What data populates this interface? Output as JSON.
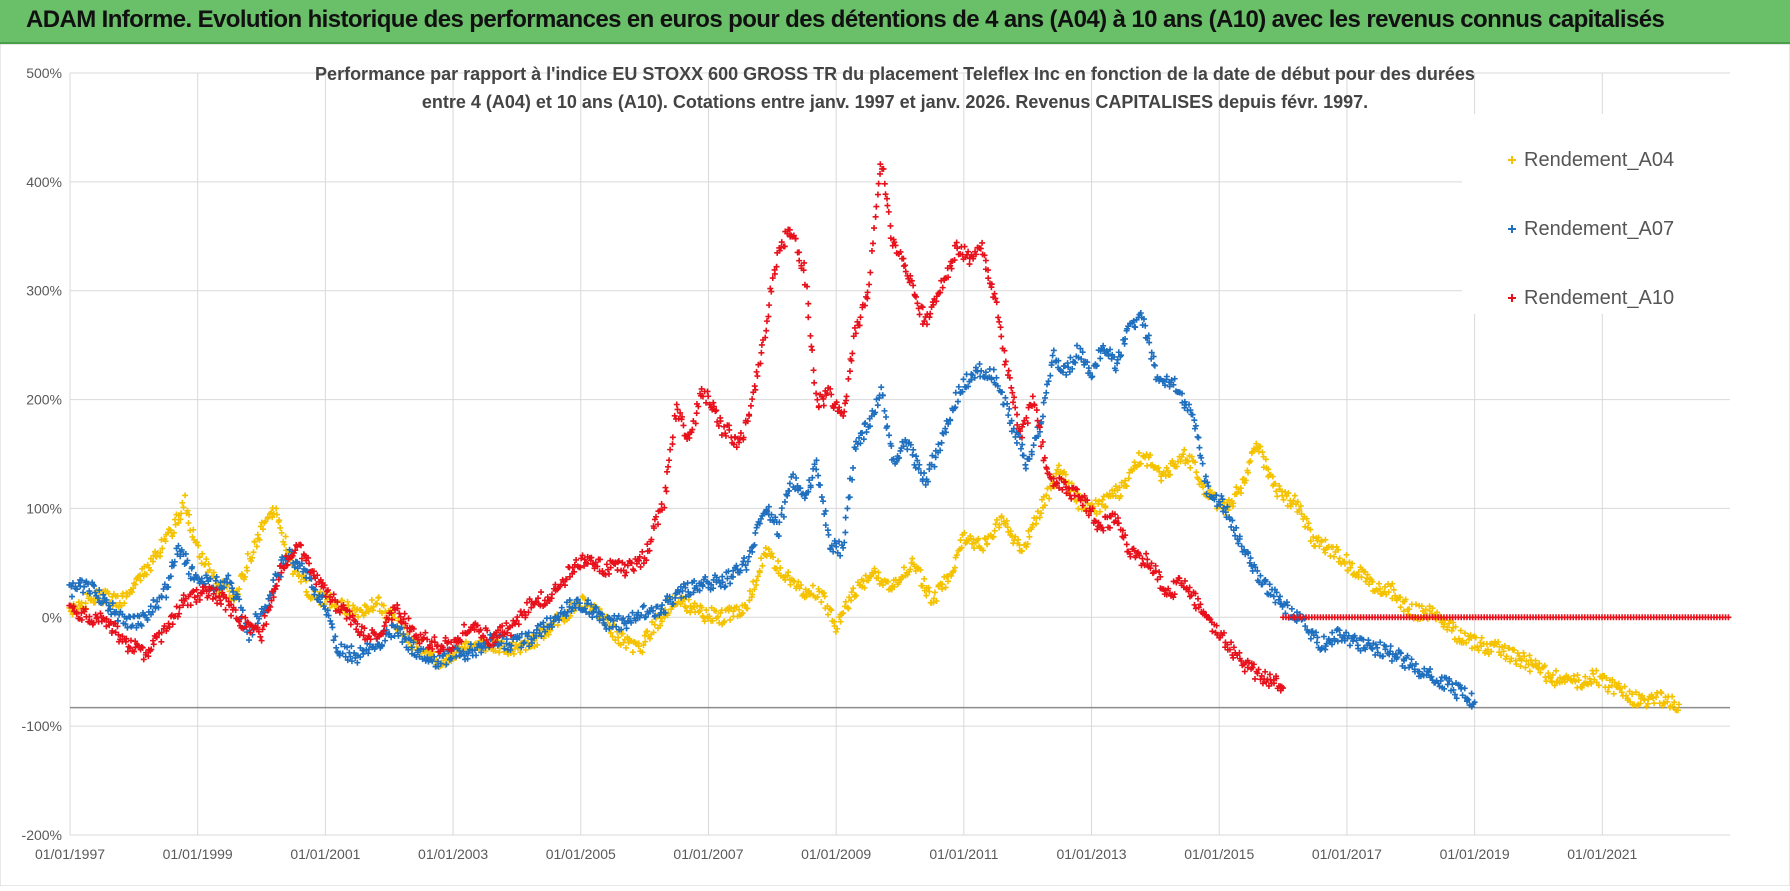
{
  "banner": {
    "title": "ADAM Informe. Evolution historique des performances en euros pour des détentions de 4 ans (A04) à 10 ans (A10) avec les revenus connus capitalisés"
  },
  "colors": {
    "banner_bg": "#6abf69",
    "a04": "#f5c200",
    "a07": "#1f6fbf",
    "a10": "#e8111b",
    "grid": "#d9d9d9",
    "axis_text": "#595959"
  },
  "chart_data": {
    "type": "scatter",
    "title_line1": "Performance par rapport à l'indice EU STOXX 600 GROSS TR  du placement Teleflex Inc en fonction de la date de début pour des durées",
    "title_line2": "entre 4 (A04) et 10 ans (A10).  Cotations entre janv. 1997 et janv. 2026. Revenus CAPITALISES depuis févr. 1997.",
    "xlabel": "",
    "ylabel": "",
    "x_range": [
      1997.0,
      2023.0
    ],
    "ylim": [
      -200,
      500
    ],
    "y_ticks": [
      {
        "v": 500,
        "label": "500%"
      },
      {
        "v": 400,
        "label": "400%"
      },
      {
        "v": 300,
        "label": "300%"
      },
      {
        "v": 200,
        "label": "200%"
      },
      {
        "v": 100,
        "label": "100%"
      },
      {
        "v": 0,
        "label": "0%"
      },
      {
        "v": -100,
        "label": "-100%"
      },
      {
        "v": -200,
        "label": "-200%"
      }
    ],
    "x_ticks": [
      {
        "v": 1997,
        "label": "01/01/1997"
      },
      {
        "v": 1999,
        "label": "01/01/1999"
      },
      {
        "v": 2001,
        "label": "01/01/2001"
      },
      {
        "v": 2003,
        "label": "01/01/2003"
      },
      {
        "v": 2005,
        "label": "01/01/2005"
      },
      {
        "v": 2007,
        "label": "01/01/2007"
      },
      {
        "v": 2009,
        "label": "01/01/2009"
      },
      {
        "v": 2011,
        "label": "01/01/2011"
      },
      {
        "v": 2013,
        "label": "01/01/2013"
      },
      {
        "v": 2015,
        "label": "01/01/2015"
      },
      {
        "v": 2017,
        "label": "01/01/2017"
      },
      {
        "v": 2019,
        "label": "01/01/2019"
      },
      {
        "v": 2021,
        "label": "01/01/2021"
      }
    ],
    "reference_line": -83,
    "legend_position": "top-right",
    "series": [
      {
        "name": "Rendement_A04",
        "color": "#f5c200",
        "points": [
          [
            1997.0,
            5
          ],
          [
            1997.4,
            20
          ],
          [
            1997.8,
            15
          ],
          [
            1998.2,
            45
          ],
          [
            1998.6,
            80
          ],
          [
            1998.8,
            105
          ],
          [
            1999.0,
            60
          ],
          [
            1999.3,
            30
          ],
          [
            1999.6,
            20
          ],
          [
            1999.9,
            70
          ],
          [
            2000.2,
            100
          ],
          [
            2000.5,
            45
          ],
          [
            2000.8,
            20
          ],
          [
            2001.1,
            15
          ],
          [
            2001.5,
            5
          ],
          [
            2001.8,
            15
          ],
          [
            2002.1,
            -5
          ],
          [
            2002.4,
            -25
          ],
          [
            2002.8,
            -40
          ],
          [
            2003.1,
            -30
          ],
          [
            2003.5,
            -25
          ],
          [
            2003.9,
            -30
          ],
          [
            2004.3,
            -20
          ],
          [
            2004.7,
            0
          ],
          [
            2005.0,
            15
          ],
          [
            2005.3,
            5
          ],
          [
            2005.6,
            -20
          ],
          [
            2005.9,
            -30
          ],
          [
            2006.2,
            -5
          ],
          [
            2006.5,
            20
          ],
          [
            2006.8,
            5
          ],
          [
            2007.2,
            0
          ],
          [
            2007.6,
            10
          ],
          [
            2007.9,
            60
          ],
          [
            2008.2,
            40
          ],
          [
            2008.5,
            25
          ],
          [
            2008.8,
            20
          ],
          [
            2009.0,
            -10
          ],
          [
            2009.3,
            25
          ],
          [
            2009.6,
            40
          ],
          [
            2009.9,
            30
          ],
          [
            2010.2,
            50
          ],
          [
            2010.5,
            15
          ],
          [
            2010.8,
            40
          ],
          [
            2011.0,
            75
          ],
          [
            2011.3,
            65
          ],
          [
            2011.6,
            90
          ],
          [
            2011.9,
            60
          ],
          [
            2012.2,
            100
          ],
          [
            2012.5,
            135
          ],
          [
            2012.8,
            105
          ],
          [
            2013.1,
            100
          ],
          [
            2013.5,
            120
          ],
          [
            2013.8,
            150
          ],
          [
            2014.1,
            130
          ],
          [
            2014.5,
            150
          ],
          [
            2014.8,
            115
          ],
          [
            2015.1,
            100
          ],
          [
            2015.4,
            125
          ],
          [
            2015.6,
            160
          ],
          [
            2015.9,
            115
          ],
          [
            2016.2,
            105
          ],
          [
            2016.5,
            70
          ],
          [
            2016.8,
            60
          ],
          [
            2017.1,
            45
          ],
          [
            2017.4,
            30
          ],
          [
            2017.7,
            25
          ],
          [
            2018.0,
            5
          ],
          [
            2018.4,
            5
          ],
          [
            2018.8,
            -20
          ],
          [
            2019.1,
            -25
          ],
          [
            2019.4,
            -30
          ],
          [
            2019.8,
            -40
          ],
          [
            2020.2,
            -55
          ],
          [
            2020.6,
            -60
          ],
          [
            2020.9,
            -55
          ],
          [
            2021.2,
            -65
          ],
          [
            2021.5,
            -75
          ],
          [
            2021.8,
            -75
          ],
          [
            2022.0,
            -75
          ],
          [
            2022.2,
            -80
          ]
        ]
      },
      {
        "name": "Rendement_A07",
        "color": "#1f6fbf",
        "points": [
          [
            1997.0,
            25
          ],
          [
            1997.3,
            30
          ],
          [
            1997.6,
            10
          ],
          [
            1997.9,
            -5
          ],
          [
            1998.2,
            0
          ],
          [
            1998.5,
            25
          ],
          [
            1998.7,
            65
          ],
          [
            1998.9,
            40
          ],
          [
            1999.2,
            30
          ],
          [
            1999.5,
            35
          ],
          [
            1999.8,
            -15
          ],
          [
            2000.1,
            15
          ],
          [
            2000.4,
            60
          ],
          [
            2000.7,
            40
          ],
          [
            2001.0,
            10
          ],
          [
            2001.2,
            -30
          ],
          [
            2001.5,
            -35
          ],
          [
            2001.8,
            -25
          ],
          [
            2002.1,
            -10
          ],
          [
            2002.4,
            -30
          ],
          [
            2002.7,
            -40
          ],
          [
            2003.0,
            -35
          ],
          [
            2003.3,
            -30
          ],
          [
            2003.6,
            -20
          ],
          [
            2003.9,
            -25
          ],
          [
            2004.2,
            -20
          ],
          [
            2004.5,
            -5
          ],
          [
            2004.8,
            10
          ],
          [
            2005.1,
            10
          ],
          [
            2005.4,
            -5
          ],
          [
            2005.7,
            -5
          ],
          [
            2006.0,
            5
          ],
          [
            2006.3,
            10
          ],
          [
            2006.6,
            25
          ],
          [
            2006.9,
            30
          ],
          [
            2007.3,
            35
          ],
          [
            2007.6,
            50
          ],
          [
            2007.9,
            105
          ],
          [
            2008.1,
            80
          ],
          [
            2008.3,
            130
          ],
          [
            2008.5,
            110
          ],
          [
            2008.7,
            140
          ],
          [
            2008.9,
            70
          ],
          [
            2009.1,
            60
          ],
          [
            2009.3,
            160
          ],
          [
            2009.5,
            175
          ],
          [
            2009.7,
            210
          ],
          [
            2009.9,
            145
          ],
          [
            2010.1,
            160
          ],
          [
            2010.4,
            125
          ],
          [
            2010.7,
            170
          ],
          [
            2010.9,
            205
          ],
          [
            2011.2,
            230
          ],
          [
            2011.5,
            220
          ],
          [
            2011.8,
            170
          ],
          [
            2012.0,
            140
          ],
          [
            2012.2,
            180
          ],
          [
            2012.4,
            240
          ],
          [
            2012.6,
            225
          ],
          [
            2012.8,
            245
          ],
          [
            2013.0,
            225
          ],
          [
            2013.2,
            250
          ],
          [
            2013.4,
            230
          ],
          [
            2013.6,
            270
          ],
          [
            2013.8,
            275
          ],
          [
            2014.0,
            225
          ],
          [
            2014.3,
            215
          ],
          [
            2014.6,
            180
          ],
          [
            2014.8,
            120
          ],
          [
            2015.1,
            100
          ],
          [
            2015.4,
            60
          ],
          [
            2015.7,
            30
          ],
          [
            2016.0,
            10
          ],
          [
            2016.3,
            -5
          ],
          [
            2016.6,
            -25
          ],
          [
            2016.9,
            -15
          ],
          [
            2017.2,
            -25
          ],
          [
            2017.6,
            -30
          ],
          [
            2017.9,
            -40
          ],
          [
            2018.2,
            -50
          ],
          [
            2018.5,
            -60
          ],
          [
            2018.8,
            -70
          ],
          [
            2019.0,
            -78
          ]
        ]
      },
      {
        "name": "Rendement_A10",
        "color": "#e8111b",
        "points": [
          [
            1997.0,
            5
          ],
          [
            1997.3,
            0
          ],
          [
            1997.6,
            -5
          ],
          [
            1997.9,
            -25
          ],
          [
            1998.2,
            -35
          ],
          [
            1998.5,
            -10
          ],
          [
            1998.8,
            15
          ],
          [
            1999.1,
            25
          ],
          [
            1999.4,
            15
          ],
          [
            1999.7,
            -5
          ],
          [
            2000.0,
            -15
          ],
          [
            2000.3,
            45
          ],
          [
            2000.6,
            65
          ],
          [
            2000.9,
            30
          ],
          [
            2001.2,
            10
          ],
          [
            2001.5,
            -10
          ],
          [
            2001.8,
            -20
          ],
          [
            2002.1,
            10
          ],
          [
            2002.4,
            -15
          ],
          [
            2002.7,
            -25
          ],
          [
            2003.0,
            -25
          ],
          [
            2003.3,
            -5
          ],
          [
            2003.6,
            -20
          ],
          [
            2003.9,
            -10
          ],
          [
            2004.2,
            10
          ],
          [
            2004.5,
            20
          ],
          [
            2004.8,
            40
          ],
          [
            2005.1,
            55
          ],
          [
            2005.4,
            45
          ],
          [
            2005.7,
            45
          ],
          [
            2006.0,
            55
          ],
          [
            2006.3,
            105
          ],
          [
            2006.5,
            195
          ],
          [
            2006.7,
            160
          ],
          [
            2006.9,
            210
          ],
          [
            2007.2,
            175
          ],
          [
            2007.5,
            160
          ],
          [
            2007.7,
            200
          ],
          [
            2007.9,
            270
          ],
          [
            2008.1,
            340
          ],
          [
            2008.3,
            355
          ],
          [
            2008.5,
            320
          ],
          [
            2008.7,
            195
          ],
          [
            2008.9,
            205
          ],
          [
            2009.1,
            180
          ],
          [
            2009.3,
            260
          ],
          [
            2009.5,
            300
          ],
          [
            2009.7,
            420
          ],
          [
            2009.9,
            340
          ],
          [
            2010.1,
            320
          ],
          [
            2010.4,
            270
          ],
          [
            2010.6,
            295
          ],
          [
            2010.9,
            340
          ],
          [
            2011.1,
            330
          ],
          [
            2011.3,
            340
          ],
          [
            2011.5,
            290
          ],
          [
            2011.7,
            220
          ],
          [
            2011.9,
            170
          ],
          [
            2012.1,
            200
          ],
          [
            2012.3,
            130
          ],
          [
            2012.6,
            120
          ],
          [
            2012.9,
            105
          ],
          [
            2013.1,
            85
          ],
          [
            2013.4,
            90
          ],
          [
            2013.6,
            60
          ],
          [
            2013.9,
            50
          ],
          [
            2014.2,
            20
          ],
          [
            2014.4,
            35
          ],
          [
            2014.7,
            10
          ],
          [
            2014.9,
            -10
          ],
          [
            2015.2,
            -30
          ],
          [
            2015.4,
            -45
          ],
          [
            2015.7,
            -55
          ],
          [
            2015.9,
            -60
          ],
          [
            2016.0,
            -65
          ]
        ]
      }
    ],
    "flat_series": {
      "series": "Rendement_A10",
      "x_start": 2016.0,
      "x_end": 2023.0,
      "value": 0
    }
  }
}
